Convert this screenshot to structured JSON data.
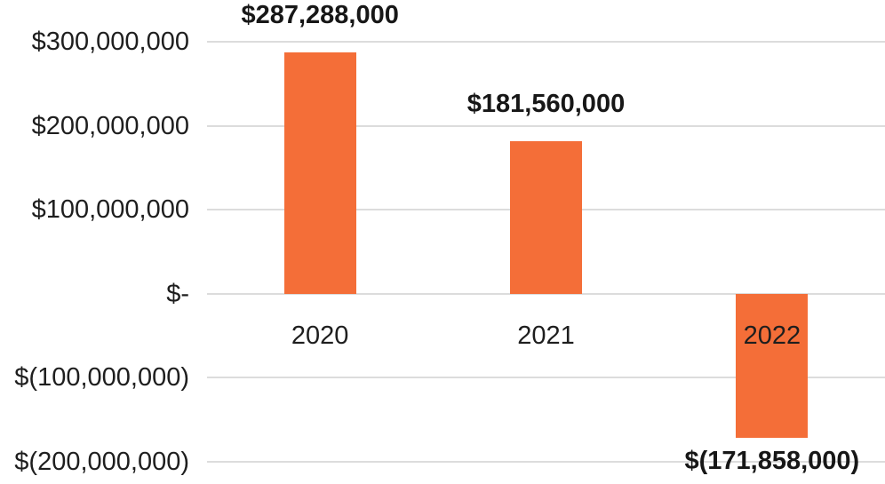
{
  "chart_data": {
    "type": "bar",
    "title": "",
    "xlabel": "",
    "ylabel": "",
    "categories": [
      "2020",
      "2021",
      "2022"
    ],
    "values": [
      287288000,
      181560000,
      -171858000
    ],
    "data_labels": [
      "$287,288,000",
      "$181,560,000",
      "$(171,858,000)"
    ],
    "series_name": "",
    "y_axis": {
      "ylim": [
        -200000000,
        300000000
      ],
      "ticks": [
        {
          "value": 300000000,
          "label": "$300,000,000"
        },
        {
          "value": 200000000,
          "label": "$200,000,000"
        },
        {
          "value": 100000000,
          "label": "$100,000,000"
        },
        {
          "value": 0,
          "label": "$-"
        },
        {
          "value": -100000000,
          "label": "$(100,000,000)"
        },
        {
          "value": -200000000,
          "label": "$(200,000,000)"
        }
      ]
    },
    "grid": "horizontal",
    "legend": "none",
    "colors": {
      "bar": "#F46E38",
      "gridline": "#DCDCDC",
      "tick_text": "#1E1E1E",
      "data_label_text": "#171717",
      "background": "#FFFFFF"
    }
  }
}
